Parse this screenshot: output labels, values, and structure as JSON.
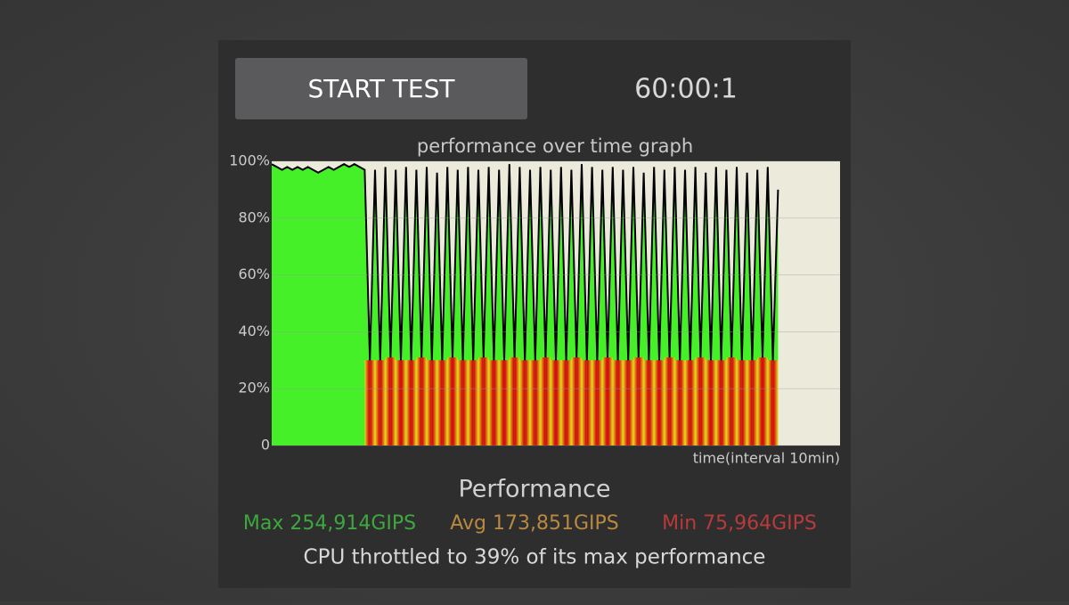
{
  "button": "START TEST",
  "timer": "60:00:1",
  "chart_data": {
    "type": "line",
    "title": "performance over time graph",
    "x_label": "time(interval 10min)",
    "color": "#000000",
    "fill": "#45f028",
    "values": [
      99,
      98,
      97,
      98,
      97,
      98,
      97,
      98,
      97,
      96,
      97,
      98,
      97,
      98,
      99,
      98,
      99,
      98,
      97,
      30,
      97,
      30,
      98,
      31,
      97,
      30,
      98,
      30,
      97,
      31,
      98,
      30,
      96,
      30,
      98,
      31,
      97,
      30,
      98,
      30,
      97,
      31,
      98,
      30,
      97,
      30,
      99,
      31,
      98,
      30,
      97,
      30,
      98,
      31,
      97,
      30,
      98,
      30,
      97,
      31,
      99,
      30,
      98,
      30,
      97,
      31,
      98,
      30,
      97,
      30,
      98,
      31,
      96,
      30,
      98,
      30,
      97,
      31,
      98,
      30,
      97,
      30,
      98,
      31,
      96,
      30,
      98,
      30,
      97,
      31,
      98,
      30,
      96,
      30,
      97,
      31,
      98,
      30,
      90,
      null,
      null,
      null,
      null,
      null,
      null,
      null,
      null,
      null,
      null,
      null,
      null
    ],
    "ylim": [
      0,
      100
    ],
    "yticks": [
      0,
      {
        "value": 20,
        "label": "20%"
      },
      {
        "value": 40,
        "label": "40%"
      },
      {
        "value": 60,
        "label": "60%"
      },
      {
        "value": 80,
        "label": "80%"
      },
      {
        "value": 100,
        "label": "100%"
      }
    ],
    "grid": true
  },
  "performance": {
    "title": "Performance",
    "max": "Max 254,914GIPS",
    "avg": "Avg 173,851GIPS",
    "min": "Min 75,964GIPS",
    "summary": "CPU throttled to 39% of its max performance"
  }
}
